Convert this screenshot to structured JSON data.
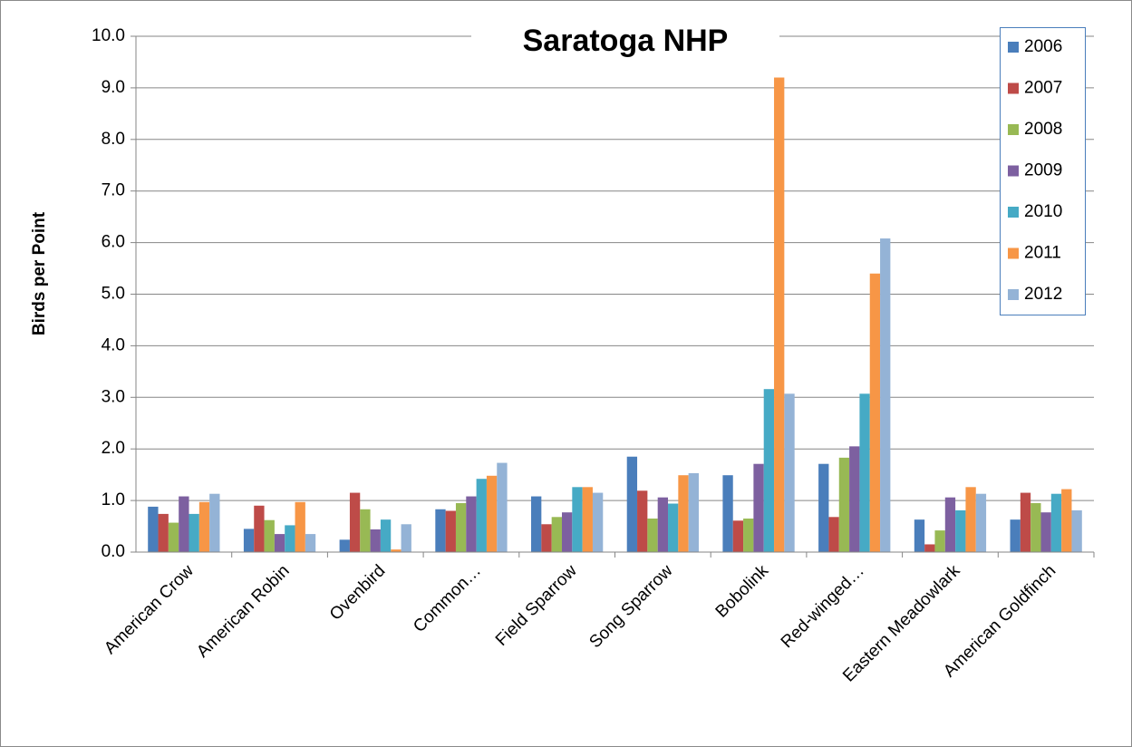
{
  "chart_data": {
    "type": "bar",
    "title": "Saratoga NHP",
    "y_label": "Birds per Point",
    "categories": [
      "American Crow",
      "American Robin",
      "Ovenbird",
      "Common…",
      "Field Sparrow",
      "Song Sparrow",
      "Bobolink",
      "Red-winged…",
      "Eastern Meadowlark",
      "American Goldfinch"
    ],
    "series": [
      {
        "name": "2006",
        "color": "#4a7ebb",
        "values": [
          0.88,
          0.45,
          0.24,
          0.83,
          1.08,
          1.85,
          1.49,
          1.71,
          0.63,
          0.63
        ]
      },
      {
        "name": "2007",
        "color": "#be4b48",
        "values": [
          0.74,
          0.9,
          1.15,
          0.8,
          0.54,
          1.19,
          0.61,
          0.68,
          0.15,
          1.15
        ]
      },
      {
        "name": "2008",
        "color": "#98b954",
        "values": [
          0.57,
          0.62,
          0.83,
          0.95,
          0.68,
          0.65,
          0.65,
          1.83,
          0.42,
          0.95
        ]
      },
      {
        "name": "2009",
        "color": "#7d60a0",
        "values": [
          1.08,
          0.35,
          0.44,
          1.08,
          0.77,
          1.06,
          1.71,
          2.05,
          1.06,
          0.77
        ]
      },
      {
        "name": "2010",
        "color": "#46aac5",
        "values": [
          0.74,
          0.52,
          0.63,
          1.42,
          1.26,
          0.94,
          3.16,
          3.07,
          0.81,
          1.13
        ]
      },
      {
        "name": "2011",
        "color": "#f79646",
        "values": [
          0.97,
          0.97,
          0.05,
          1.48,
          1.26,
          1.49,
          9.2,
          5.4,
          1.26,
          1.22
        ]
      },
      {
        "name": "2012",
        "color": "#94b3d6",
        "values": [
          1.13,
          0.35,
          0.54,
          1.73,
          1.15,
          1.53,
          3.07,
          6.08,
          1.13,
          0.81
        ]
      }
    ],
    "ylim": [
      0,
      10
    ],
    "yticks": [
      {
        "value": 0,
        "label": "0.0"
      },
      {
        "value": 1,
        "label": "1.0"
      },
      {
        "value": 2,
        "label": "2.0"
      },
      {
        "value": 3,
        "label": "3.0"
      },
      {
        "value": 4,
        "label": "4.0"
      },
      {
        "value": 5,
        "label": "5.0"
      },
      {
        "value": 6,
        "label": "6.0"
      },
      {
        "value": 7,
        "label": "7.0"
      },
      {
        "value": 8,
        "label": "8.0"
      },
      {
        "value": 9,
        "label": "9.0"
      },
      {
        "value": 10,
        "label": "10.0"
      }
    ],
    "grid": true,
    "legend": "top-right"
  }
}
